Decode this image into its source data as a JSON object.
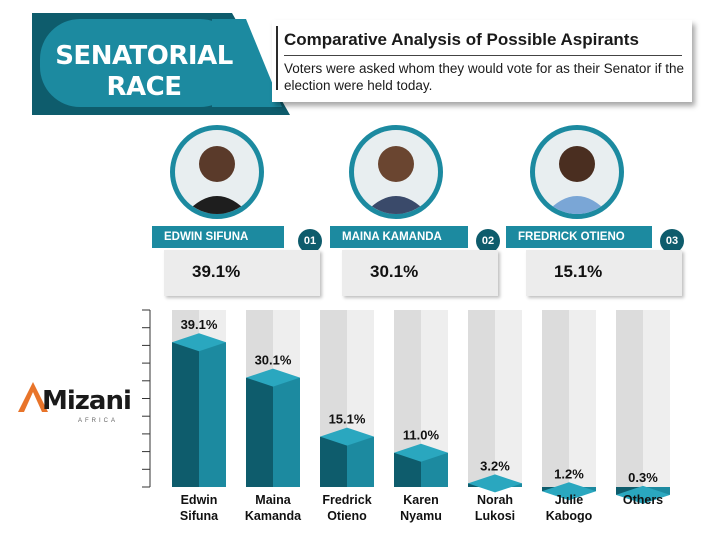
{
  "header": {
    "badge_line1": "SENATORIAL",
    "badge_line2": "RACE",
    "title": "Comparative Analysis of Possible Aspirants",
    "subtitle": "Voters were asked whom they would vote for as their Senator if the election were held today."
  },
  "candidates": [
    {
      "name": "EDWIN SIFUNA",
      "rank": "01",
      "percent": "39.1%"
    },
    {
      "name": "MAINA KAMANDA",
      "rank": "02",
      "percent": "30.1%"
    },
    {
      "name": "FREDRICK OTIENO",
      "rank": "03",
      "percent": "15.1%"
    }
  ],
  "logo": {
    "text": "Mizani",
    "sub": "AFRICA"
  },
  "colors": {
    "teal": "#1c8aa0",
    "teal_dark": "#0e5c6c",
    "track": "#dcdcdc"
  },
  "chart_data": {
    "type": "bar",
    "categories": [
      [
        "Edwin",
        "Sifuna"
      ],
      [
        "Maina",
        "Kamanda"
      ],
      [
        "Fredrick",
        "Otieno"
      ],
      [
        "Karen",
        "Nyamu"
      ],
      [
        "Norah",
        "Lukosi"
      ],
      [
        "Julie",
        "Kabogo"
      ],
      [
        "Others"
      ]
    ],
    "values": [
      39.1,
      30.1,
      15.1,
      11.0,
      3.2,
      1.2,
      0.3
    ],
    "labels": [
      "39.1%",
      "30.1%",
      "15.1%",
      "11.0%",
      "3.2%",
      "1.2%",
      "0.3%"
    ],
    "ylim": [
      0,
      45
    ]
  }
}
